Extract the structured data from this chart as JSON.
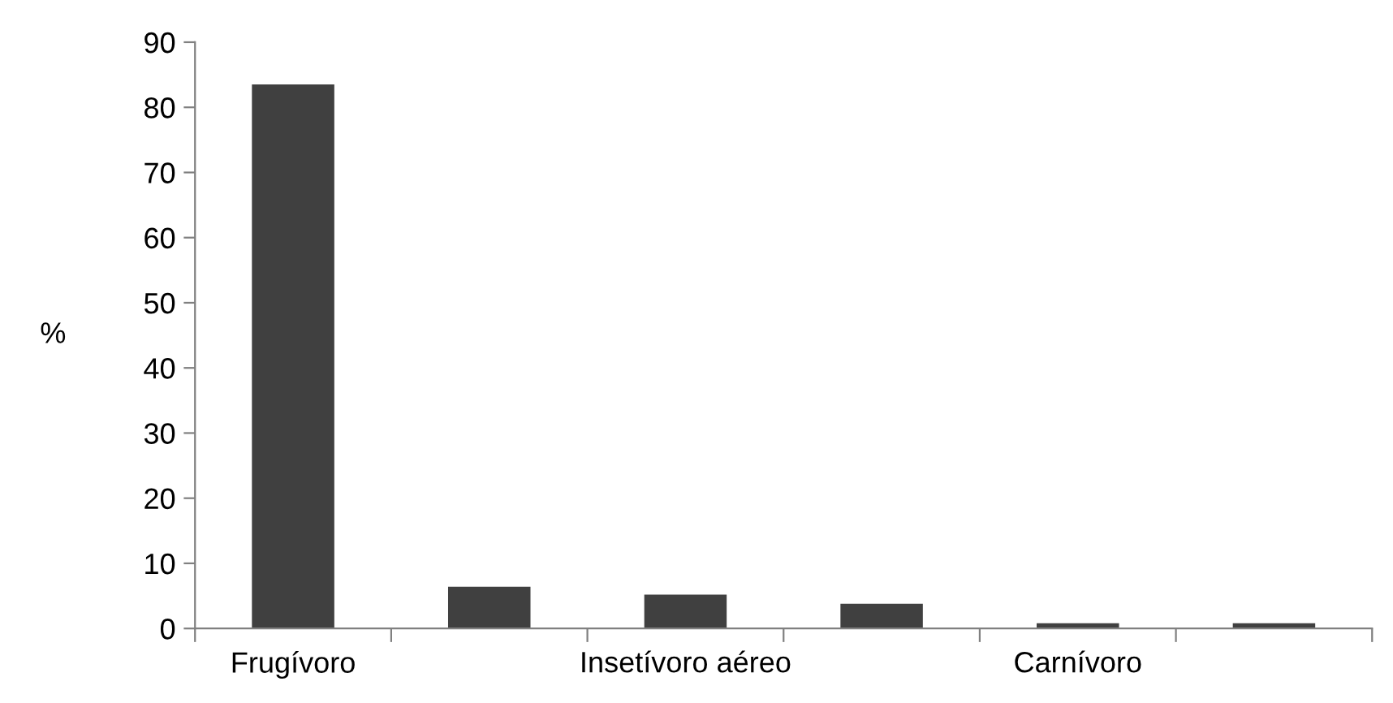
{
  "chart_data": {
    "type": "bar",
    "ylabel": "%",
    "categories": [
      "Frugívoro",
      null,
      "Insetívoro aéreo",
      null,
      "Carnívoro",
      null
    ],
    "values": [
      83.5,
      6.4,
      5.2,
      3.8,
      0.8,
      0.8
    ],
    "color": "#404040",
    "ylim": [
      0,
      90
    ],
    "yticks": [
      0,
      10,
      20,
      30,
      40,
      50,
      60,
      70,
      80,
      90
    ],
    "grid": false,
    "legend": false
  }
}
